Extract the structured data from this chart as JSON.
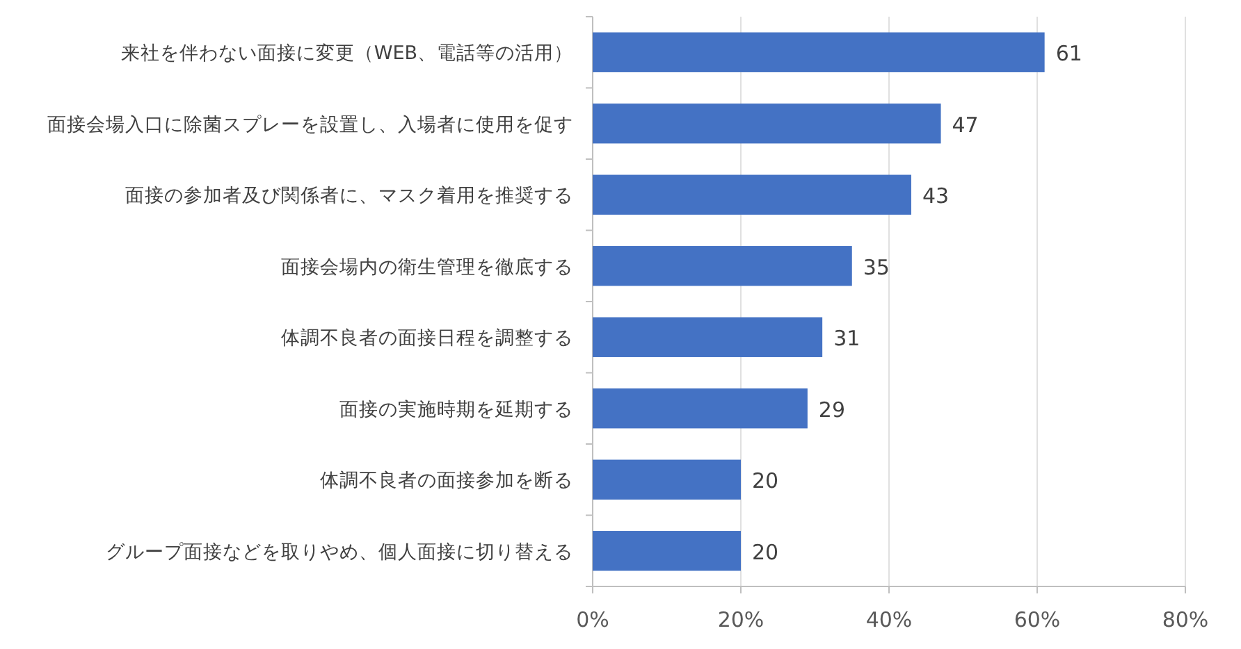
{
  "chart_data": {
    "type": "bar",
    "orientation": "horizontal",
    "categories": [
      "来社を伴わない面接に変更（WEB、電話等の活用）",
      "面接会場入口に除菌スプレーを設置し、入場者に使用を促す",
      "面接の参加者及び関係者に、マスク着用を推奨する",
      "面接会場内の衛生管理を徹底する",
      "体調不良者の面接日程を調整する",
      "面接の実施時期を延期する",
      "体調不良者の面接参加を断る",
      "グループ面接などを取りやめ、個人面接に切り替える"
    ],
    "values": [
      61,
      47,
      43,
      35,
      31,
      29,
      20,
      20
    ],
    "color": "#4472c4",
    "xlim": [
      0,
      80
    ],
    "xticks": [
      {
        "value": 0,
        "label": "0%"
      },
      {
        "value": 20,
        "label": "20%"
      },
      {
        "value": 40,
        "label": "40%"
      },
      {
        "value": 60,
        "label": "60%"
      },
      {
        "value": 80,
        "label": "80%"
      }
    ],
    "grid": "x",
    "data_labels": true
  }
}
